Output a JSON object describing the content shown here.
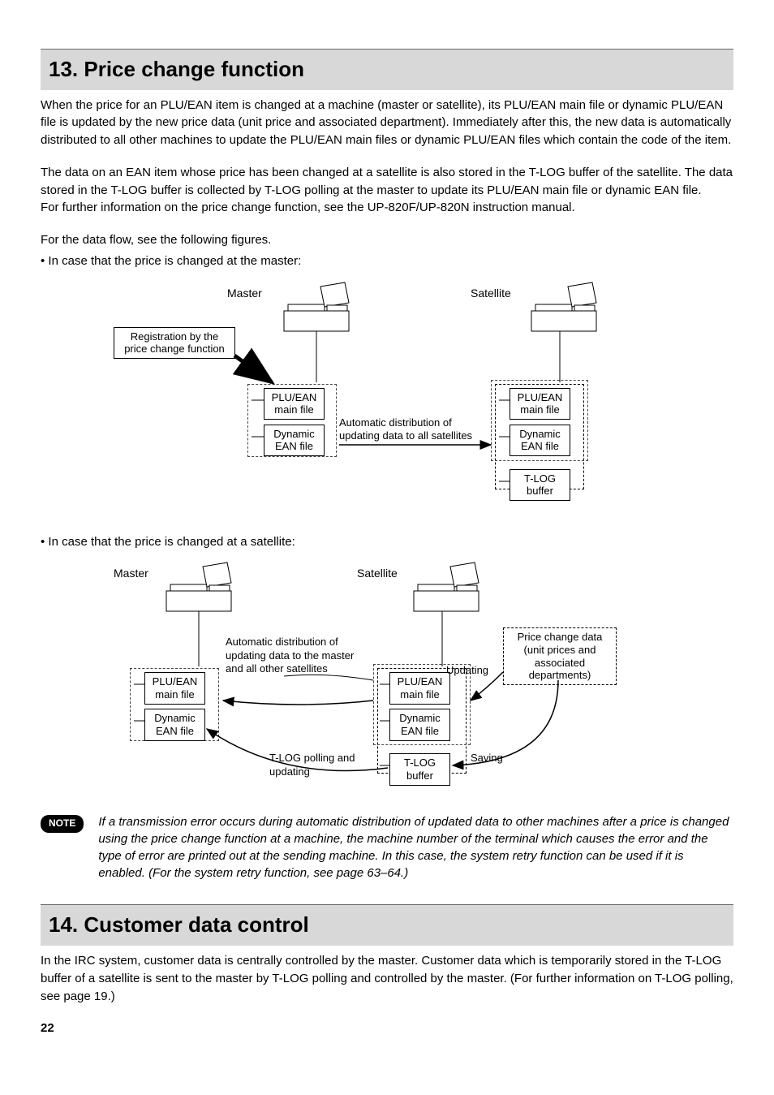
{
  "section13": {
    "title": "13. Price change function",
    "p1": "When the price for an PLU/EAN item is changed at a machine (master or satellite), its PLU/EAN main file or dynamic PLU/EAN file is updated by the new price data (unit price and associated department). Immediately after this, the new data is automatically distributed to all other machines to update the PLU/EAN main files or dynamic PLU/EAN files which contain the code of the item.",
    "p2": "The data on an EAN item whose price has been changed at a satellite is also stored in the T-LOG buffer of the satellite. The data stored in the T-LOG buffer is collected by T-LOG polling at the master to update its PLU/EAN main file or dynamic EAN file.",
    "p3": "For further information on the price change function, see the UP-820F/UP-820N instruction manual.",
    "p4": "For the data flow, see the following figures.",
    "bullet1": "• In case that the price is changed at the master:",
    "bullet2": "• In case that the price is changed at a satellite:"
  },
  "diagram1": {
    "master_label": "Master",
    "satellite_label": "Satellite",
    "reg_box": "Registration by the\nprice change function",
    "plu_main": "PLU/EAN\nmain file",
    "dyn_ean": "Dynamic\nEAN file",
    "tlog": "T-LOG\nbuffer",
    "auto_dist": "Automatic distribution of\nupdating data to all satellites",
    "colors": {
      "line": "#000000",
      "dash": "#000000",
      "bg": "#ffffff"
    }
  },
  "diagram2": {
    "master_label": "Master",
    "satellite_label": "Satellite",
    "plu_main": "PLU/EAN\nmain file",
    "dyn_ean": "Dynamic\nEAN file",
    "tlog": "T-LOG\nbuffer",
    "price_change": "Price change data\n(unit prices and\nassociated\ndepartments)",
    "updating": "Updating",
    "saving": "Saving",
    "auto_dist": "Automatic distribution of\nupdating data to the master\nand all other satellites",
    "tlog_poll": "T-LOG polling and\nupdating"
  },
  "note": {
    "label": "NOTE",
    "text": "If a transmission error occurs during automatic distribution of updated data to other machines after a price is changed using the price change function at a machine, the machine number of the terminal which causes the error and the type of error are printed out at the sending machine. In this case, the system retry function can be used if it is enabled. (For the system retry function, see page 63–64.)"
  },
  "section14": {
    "title": "14. Customer data control",
    "p1": "In the IRC system, customer data is centrally controlled by the master. Customer data which is temporarily stored in the T-LOG buffer of a satellite is sent to the master by T-LOG polling and controlled by the master. (For further information on T-LOG polling, see page 19.)"
  },
  "page_number": "22"
}
